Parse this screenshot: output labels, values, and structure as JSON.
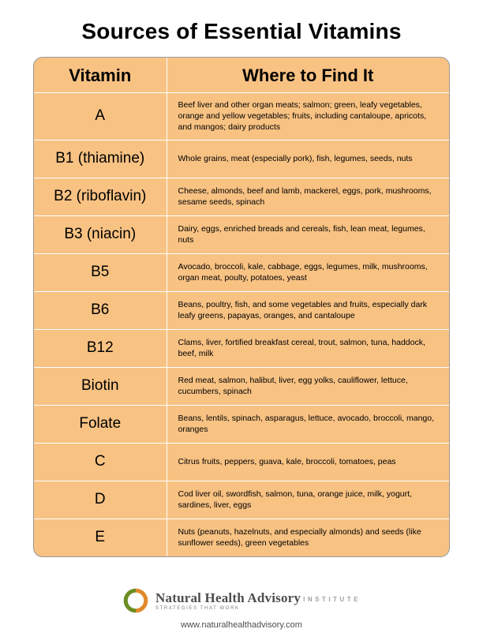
{
  "title": "Sources of Essential Vitamins",
  "table": {
    "headers": {
      "vitamin": "Vitamin",
      "source": "Where to Find It"
    },
    "rows": [
      {
        "vitamin": "A",
        "source": "Beef liver and other organ meats; salmon; green, leafy vegetables, orange and yellow vegetables; fruits, including cantaloupe, apricots, and mangos; dairy products"
      },
      {
        "vitamin": "B1 (thiamine)",
        "source": "Whole grains, meat (especially pork), fish, legumes, seeds, nuts"
      },
      {
        "vitamin": "B2 (riboflavin)",
        "source": "Cheese, almonds, beef and lamb, mackerel, eggs, pork, mushrooms, sesame seeds, spinach"
      },
      {
        "vitamin": "B3 (niacin)",
        "source": "Dairy, eggs, enriched breads and cereals, fish, lean meat, legumes, nuts"
      },
      {
        "vitamin": "B5",
        "source": "Avocado, broccoli, kale, cabbage, eggs, legumes, milk, mushrooms, organ meat, poulty, potatoes, yeast"
      },
      {
        "vitamin": "B6",
        "source": "Beans, poultry, fish, and some vegetables and fruits, especially dark leafy greens, papayas, oranges, and cantaloupe"
      },
      {
        "vitamin": "B12",
        "source": "Clams, liver, fortified breakfast cereal, trout, salmon, tuna, haddock, beef, milk"
      },
      {
        "vitamin": "Biotin",
        "source": "Red meat, salmon, halibut, liver, egg yolks, cauliflower, lettuce, cucumbers, spinach"
      },
      {
        "vitamin": "Folate",
        "source": "Beans, lentils, spinach, asparagus, lettuce, avocado, broccoli, mango, oranges"
      },
      {
        "vitamin": "C",
        "source": "Citrus fruits, peppers, guava, kale, broccoli, tomatoes, peas"
      },
      {
        "vitamin": "D",
        "source": "Cod liver oil, swordfish, salmon, tuna, orange juice, milk, yogurt, sardines, liver, eggs"
      },
      {
        "vitamin": "E",
        "source": "Nuts (peanuts, hazelnuts, and especially almonds) and seeds (like sunflower seeds), green vegetables"
      }
    ]
  },
  "footer": {
    "brand_main": "Natural Health Advisory",
    "brand_tag": "STRATEGIES THAT WORK",
    "brand_inst": "INSTITUTE",
    "url": "www.naturalhealthadvisory.com"
  },
  "style": {
    "page_bg": "#ffffff",
    "table_bg": "#f8c283",
    "table_border": "#999999",
    "divider": "#ffffff",
    "title_color": "#000000",
    "text_color": "#000000",
    "logo_green": "#6b8e23",
    "logo_orange": "#e08a2c",
    "title_fontsize": 28,
    "header_fontsize": 22,
    "vitamin_fontsize": 19,
    "source_fontsize": 10.5,
    "vitamin_col_width": 168
  }
}
